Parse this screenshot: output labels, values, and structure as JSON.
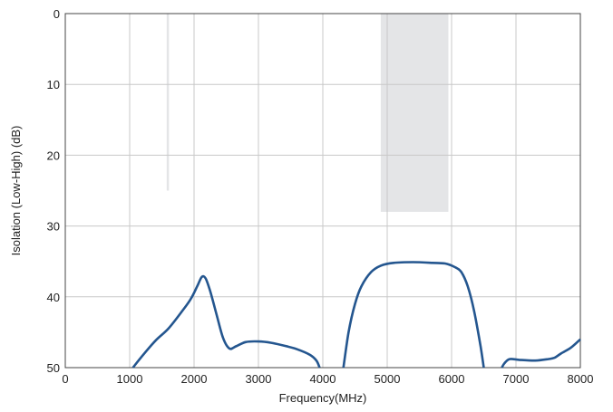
{
  "chart_data": {
    "type": "line",
    "title": "",
    "xlabel": "Frequency(MHz)",
    "ylabel": "Isolation (Low-High) (dB)",
    "xlim": [
      0,
      8000
    ],
    "ylim": [
      0,
      50
    ],
    "y_inverted": true,
    "grid": true,
    "x_ticks": [
      0,
      1000,
      2000,
      3000,
      4000,
      5000,
      6000,
      7000,
      8000
    ],
    "y_ticks": [
      0,
      10,
      20,
      30,
      40,
      50
    ],
    "shaded_regions": [
      {
        "x_start": 1575,
        "x_end": 1610,
        "y_start": 0,
        "y_end": 25,
        "color": "#e4e5e7"
      },
      {
        "x_start": 4900,
        "x_end": 5950,
        "y_start": 0,
        "y_end": 28,
        "color": "#e4e5e7"
      }
    ],
    "series": [
      {
        "color": "#24568f",
        "segments": [
          [
            [
              1050,
              50
            ],
            [
              1200,
              48.3
            ],
            [
              1400,
              46.2
            ],
            [
              1600,
              44.5
            ],
            [
              1800,
              42.2
            ],
            [
              1950,
              40.3
            ],
            [
              2050,
              38.5
            ],
            [
              2120,
              37.2
            ],
            [
              2180,
              37.4
            ],
            [
              2250,
              39.2
            ],
            [
              2350,
              42.5
            ],
            [
              2450,
              45.8
            ],
            [
              2550,
              47.3
            ],
            [
              2650,
              47.0
            ],
            [
              2800,
              46.4
            ],
            [
              3000,
              46.3
            ],
            [
              3200,
              46.5
            ],
            [
              3400,
              46.9
            ],
            [
              3600,
              47.4
            ],
            [
              3800,
              48.2
            ],
            [
              3900,
              49.0
            ],
            [
              3950,
              50
            ]
          ],
          [
            [
              4320,
              50
            ],
            [
              4400,
              45.0
            ],
            [
              4500,
              41.0
            ],
            [
              4600,
              38.5
            ],
            [
              4750,
              36.5
            ],
            [
              4900,
              35.6
            ],
            [
              5100,
              35.2
            ],
            [
              5400,
              35.1
            ],
            [
              5700,
              35.2
            ],
            [
              5900,
              35.3
            ],
            [
              6050,
              35.8
            ],
            [
              6150,
              36.5
            ],
            [
              6250,
              38.5
            ],
            [
              6350,
              42.0
            ],
            [
              6450,
              47.0
            ],
            [
              6500,
              50
            ]
          ],
          [
            [
              6780,
              50
            ],
            [
              6820,
              49.4
            ],
            [
              6900,
              48.8
            ],
            [
              7050,
              48.9
            ],
            [
              7300,
              49.0
            ],
            [
              7500,
              48.8
            ],
            [
              7600,
              48.6
            ],
            [
              7700,
              48.0
            ],
            [
              7850,
              47.2
            ],
            [
              8000,
              46.0
            ]
          ]
        ]
      }
    ]
  }
}
